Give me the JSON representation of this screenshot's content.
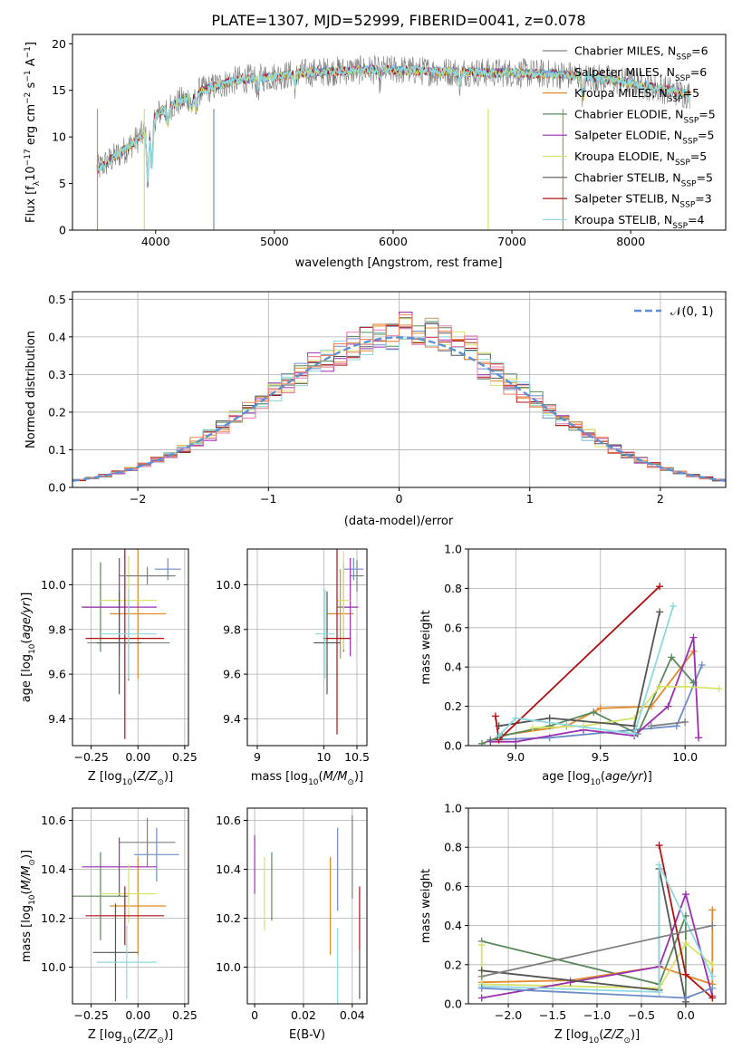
{
  "figure_title": "PLATE=1307, MJD=52999, FIBERID=0041, z=0.078",
  "legend_models": [
    {
      "label": "Chabrier MILES, N",
      "sub": "SSP",
      "suffix": "=6",
      "color": "#808080"
    },
    {
      "label": "Salpeter MILES, N",
      "sub": "SSP",
      "suffix": "=6",
      "color": "#6c8ec8"
    },
    {
      "label": "Kroupa MILES, N",
      "sub": "SSP",
      "suffix": "=5",
      "color": "#e08a2a"
    },
    {
      "label": "Chabrier ELODIE, N",
      "sub": "SSP",
      "suffix": "=5",
      "color": "#5a8a5a"
    },
    {
      "label": "Salpeter ELODIE, N",
      "sub": "SSP",
      "suffix": "=5",
      "color": "#9a2fb0"
    },
    {
      "label": "Kroupa ELODIE, N",
      "sub": "SSP",
      "suffix": "=5",
      "color": "#d6e26a"
    },
    {
      "label": "Chabrier STELIB, N",
      "sub": "SSP",
      "suffix": "=5",
      "color": "#555555"
    },
    {
      "label": "Salpeter STELIB, N",
      "sub": "SSP",
      "suffix": "=3",
      "color": "#b01010"
    },
    {
      "label": "Kroupa STELIB, N",
      "sub": "SSP",
      "suffix": "=4",
      "color": "#8ed8e0"
    }
  ],
  "chart_data": [
    {
      "type": "line",
      "name": "spectrum",
      "xlabel": "wavelength [Angstrom, rest frame]",
      "ylabel": "Flux [f",
      "ylabel_parts": [
        "Flux [f",
        "λ",
        "10",
        "−17",
        " erg cm",
        "−2",
        " s",
        "−1",
        " A",
        "−1",
        "]"
      ],
      "xlim": [
        3300,
        8800
      ],
      "ylim": [
        0,
        21
      ],
      "xticks": [
        4000,
        5000,
        6000,
        7000,
        8000
      ],
      "yticks": [
        0,
        5,
        10,
        15,
        20
      ],
      "grid": false,
      "legend_position": "top-right",
      "continuum": {
        "x": [
          3510,
          3560,
          3650,
          3750,
          3850,
          3920,
          3980,
          4050,
          4150,
          4250,
          4350,
          4450,
          4550,
          4650,
          4750,
          4850,
          5000,
          5200,
          5400,
          5600,
          5800,
          6000,
          6200,
          6400,
          6600,
          6800,
          7000,
          7200,
          7400,
          7600,
          7800,
          8000,
          8200,
          8400,
          8500
        ],
        "y": [
          6.5,
          7.0,
          7.8,
          8.7,
          9.8,
          10.6,
          12.0,
          12.8,
          13.5,
          14.0,
          14.8,
          15.2,
          15.6,
          16.0,
          16.2,
          16.3,
          16.5,
          16.8,
          17.0,
          17.1,
          17.2,
          17.2,
          17.1,
          17.0,
          17.0,
          16.9,
          16.9,
          16.8,
          16.7,
          16.5,
          16.2,
          15.8,
          15.3,
          14.8,
          14.5
        ]
      }
    },
    {
      "type": "bar",
      "name": "residual-histogram",
      "xlabel": "(data-model)/error",
      "ylabel": "Normed distribution",
      "xlim": [
        -2.5,
        2.5
      ],
      "ylim": [
        0,
        0.52
      ],
      "xticks": [
        -2,
        -1,
        0,
        1,
        2
      ],
      "yticks": [
        0.0,
        0.1,
        0.2,
        0.3,
        0.4,
        0.5
      ],
      "grid": true,
      "legend": "𝒩(0, 1)",
      "legend_position": "top-right",
      "bin_width": 0.1
    },
    {
      "type": "scatter",
      "name": "age-vs-Z",
      "xlabel": "Z [log",
      "ylabel": "age  [log",
      "xlim": [
        -0.35,
        0.27
      ],
      "ylim": [
        9.28,
        10.16
      ],
      "xticks": [
        -0.25,
        0.0,
        0.25
      ],
      "yticks": [
        9.4,
        9.6,
        9.8,
        10.0
      ],
      "points": [
        {
          "model": 0,
          "x": -0.05,
          "y": 9.74,
          "xerr": 0.22,
          "yerr": 0.17
        },
        {
          "model": 1,
          "x": 0.16,
          "y": 10.07,
          "xerr": 0.07,
          "yerr": 0.05
        },
        {
          "model": 2,
          "x": 0.0,
          "y": 9.87,
          "xerr": 0.15,
          "yerr": 0.29
        },
        {
          "model": 3,
          "x": -0.2,
          "y": 9.9,
          "xerr": 0.1,
          "yerr": 0.2
        },
        {
          "model": 4,
          "x": -0.1,
          "y": 9.9,
          "xerr": 0.2,
          "yerr": 0.22
        },
        {
          "model": 5,
          "x": -0.05,
          "y": 9.93,
          "xerr": 0.15,
          "yerr": 0.2
        },
        {
          "model": 6,
          "x": -0.1,
          "y": 9.74,
          "xerr": 0.12,
          "yerr": 0.23
        },
        {
          "model": 7,
          "x": -0.07,
          "y": 9.76,
          "xerr": 0.21,
          "yerr": 0.45
        },
        {
          "model": 8,
          "x": -0.05,
          "y": 9.78,
          "xerr": 0.15,
          "yerr": 0.2
        },
        {
          "model": 0,
          "x": 0.05,
          "y": 10.04,
          "xerr": 0.15,
          "yerr": 0.04
        }
      ]
    },
    {
      "type": "scatter",
      "name": "age-vs-mass",
      "xlabel": "mass [log",
      "ylabel": "",
      "xlim": [
        8.85,
        10.65
      ],
      "ylim": [
        9.28,
        10.16
      ],
      "xticks": [
        9,
        10,
        10.5
      ],
      "xtick_labels": [
        "9",
        "10",
        "10.5"
      ],
      "yticks": [
        9.4,
        9.6,
        9.8,
        10.0
      ],
      "points": [
        {
          "model": 0,
          "x": 10.5,
          "y": 10.04,
          "xerr": 0.1,
          "yerr": 0.07
        },
        {
          "model": 1,
          "x": 10.45,
          "y": 10.07,
          "xerr": 0.15,
          "yerr": 0.05
        },
        {
          "model": 2,
          "x": 10.25,
          "y": 9.87,
          "xerr": 0.2,
          "yerr": 0.2
        },
        {
          "model": 3,
          "x": 10.3,
          "y": 9.9,
          "xerr": 0.1,
          "yerr": 0.2
        },
        {
          "model": 4,
          "x": 10.4,
          "y": 9.9,
          "xerr": 0.12,
          "yerr": 0.22
        },
        {
          "model": 5,
          "x": 10.3,
          "y": 9.93,
          "xerr": 0.1,
          "yerr": 0.22
        },
        {
          "model": 6,
          "x": 10.05,
          "y": 9.74,
          "xerr": 0.2,
          "yerr": 0.23
        },
        {
          "model": 7,
          "x": 10.2,
          "y": 9.76,
          "xerr": 0.2,
          "yerr": 0.43
        },
        {
          "model": 8,
          "x": 10.02,
          "y": 9.78,
          "xerr": 0.15,
          "yerr": 0.2
        }
      ]
    },
    {
      "type": "line",
      "name": "mass-weight-vs-age",
      "xlabel": "age  [log",
      "ylabel": "mass weight",
      "xlim": [
        8.72,
        10.24
      ],
      "ylim": [
        0,
        1.0
      ],
      "xticks": [
        9.0,
        9.5,
        10.0
      ],
      "yticks": [
        0.0,
        0.2,
        0.4,
        0.6,
        0.8,
        1.0
      ],
      "grid": true,
      "series": [
        {
          "model": 1,
          "x": [
            8.85,
            9.2,
            9.95,
            10.1
          ],
          "y": [
            0.03,
            0.04,
            0.1,
            0.41
          ]
        },
        {
          "model": 2,
          "x": [
            8.9,
            9.3,
            9.5,
            9.8,
            10.05
          ],
          "y": [
            0.05,
            0.1,
            0.19,
            0.2,
            0.48
          ]
        },
        {
          "model": 3,
          "x": [
            8.8,
            8.92,
            9.2,
            9.46,
            9.72,
            9.92,
            10.05
          ],
          "y": [
            0.01,
            0.05,
            0.1,
            0.17,
            0.06,
            0.45,
            0.32
          ]
        },
        {
          "model": 4,
          "x": [
            8.85,
            9.0,
            9.4,
            9.7,
            9.9,
            10.05,
            10.08
          ],
          "y": [
            0.02,
            0.02,
            0.08,
            0.05,
            0.2,
            0.55,
            0.04
          ]
        },
        {
          "model": 5,
          "x": [
            9.1,
            9.4,
            9.7,
            9.85,
            10.0,
            10.2
          ],
          "y": [
            0.09,
            0.1,
            0.14,
            0.3,
            0.3,
            0.29
          ]
        },
        {
          "model": 6,
          "x": [
            8.9,
            9.2,
            9.7,
            9.85
          ],
          "y": [
            0.1,
            0.14,
            0.1,
            0.68
          ]
        },
        {
          "model": 7,
          "x": [
            8.88,
            8.9,
            9.85
          ],
          "y": [
            0.15,
            0.03,
            0.81
          ]
        },
        {
          "model": 8,
          "x": [
            8.9,
            9.0,
            9.7,
            9.93
          ],
          "y": [
            0.05,
            0.14,
            0.06,
            0.71
          ]
        },
        {
          "model": 0,
          "x": [
            9.8,
            10.0
          ],
          "y": [
            0.1,
            0.12
          ]
        }
      ]
    },
    {
      "type": "scatter",
      "name": "mass-vs-Z",
      "xlabel": "Z [log",
      "ylabel": "mass [log",
      "xlim": [
        -0.35,
        0.27
      ],
      "ylim": [
        9.85,
        10.65
      ],
      "xticks": [
        -0.25,
        0.0,
        0.25
      ],
      "yticks": [
        10.0,
        10.2,
        10.4,
        10.6
      ],
      "points": [
        {
          "model": 0,
          "x": 0.05,
          "y": 10.51,
          "xerr": 0.15,
          "yerr": 0.1
        },
        {
          "model": 1,
          "x": 0.1,
          "y": 10.46,
          "xerr": 0.12,
          "yerr": 0.11
        },
        {
          "model": 2,
          "x": 0.0,
          "y": 10.25,
          "xerr": 0.15,
          "yerr": 0.2
        },
        {
          "model": 3,
          "x": -0.2,
          "y": 10.29,
          "xerr": 0.15,
          "yerr": 0.18
        },
        {
          "model": 4,
          "x": -0.1,
          "y": 10.41,
          "xerr": 0.2,
          "yerr": 0.12
        },
        {
          "model": 5,
          "x": -0.05,
          "y": 10.3,
          "xerr": 0.15,
          "yerr": 0.12
        },
        {
          "model": 6,
          "x": -0.12,
          "y": 10.06,
          "xerr": 0.12,
          "yerr": 0.2
        },
        {
          "model": 7,
          "x": -0.07,
          "y": 10.21,
          "xerr": 0.21,
          "yerr": 0.12
        },
        {
          "model": 8,
          "x": -0.06,
          "y": 10.02,
          "xerr": 0.16,
          "yerr": 0.15
        }
      ]
    },
    {
      "type": "scatter",
      "name": "mass-vs-ebv",
      "xlabel": "E(B-V)",
      "ylabel": "",
      "xlim": [
        -0.003,
        0.046
      ],
      "ylim": [
        9.85,
        10.65
      ],
      "xticks": [
        0.0,
        0.02,
        0.04
      ],
      "xtick_labels": [
        "0.00",
        "0.02",
        "0.04"
      ],
      "yticks": [
        10.0,
        10.2,
        10.4,
        10.6
      ],
      "points": [
        {
          "model": 4,
          "x": 0.0,
          "y": 10.42,
          "yerr": 0.12
        },
        {
          "model": 5,
          "x": 0.004,
          "y": 10.3,
          "yerr": 0.15
        },
        {
          "model": 3,
          "x": 0.007,
          "y": 10.33,
          "yerr": 0.14
        },
        {
          "model": 2,
          "x": 0.031,
          "y": 10.25,
          "yerr": 0.2
        },
        {
          "model": 1,
          "x": 0.034,
          "y": 10.4,
          "yerr": 0.17
        },
        {
          "model": 8,
          "x": 0.034,
          "y": 10.0,
          "yerr": 0.16
        },
        {
          "model": 0,
          "x": 0.04,
          "y": 10.45,
          "yerr": 0.17
        },
        {
          "model": 7,
          "x": 0.043,
          "y": 10.2,
          "yerr": 0.13
        },
        {
          "model": 6,
          "x": 0.043,
          "y": 9.97,
          "yerr": 0.1
        }
      ]
    },
    {
      "type": "line",
      "name": "mass-weight-vs-Z",
      "xlabel": "Z [log",
      "ylabel": "mass weight",
      "xlim": [
        -2.45,
        0.45
      ],
      "ylim": [
        0,
        1.0
      ],
      "xticks": [
        -2.0,
        -1.5,
        -1.0,
        -0.5,
        0.0
      ],
      "yticks": [
        0.0,
        0.2,
        0.4,
        0.6,
        0.8,
        1.0
      ],
      "grid": true,
      "series": [
        {
          "model": 3,
          "x": [
            -2.3,
            -0.3,
            0.0,
            0.0
          ],
          "y": [
            0.32,
            0.1,
            0.45,
            0.01
          ]
        },
        {
          "model": 2,
          "x": [
            -2.3,
            -1.3,
            -0.3,
            0.3,
            0.3
          ],
          "y": [
            0.11,
            0.12,
            0.19,
            0.1,
            0.48
          ]
        },
        {
          "model": 5,
          "x": [
            -2.3,
            -2.3,
            -0.3,
            0.0,
            0.3
          ],
          "y": [
            0.3,
            0.1,
            0.08,
            0.31,
            0.2
          ]
        },
        {
          "model": 4,
          "x": [
            -2.3,
            -1.3,
            -0.3,
            0.0,
            0.3
          ],
          "y": [
            0.03,
            0.11,
            0.19,
            0.56,
            0.04
          ]
        },
        {
          "model": 6,
          "x": [
            -2.3,
            -0.3,
            -0.3,
            0.0
          ],
          "y": [
            0.17,
            0.07,
            0.69,
            0.01
          ]
        },
        {
          "model": 7,
          "x": [
            -0.3,
            0.0,
            0.3
          ],
          "y": [
            0.81,
            0.15,
            0.03
          ]
        },
        {
          "model": 8,
          "x": [
            -2.3,
            -0.3,
            -0.3,
            0.3
          ],
          "y": [
            0.09,
            0.06,
            0.71,
            0.14
          ]
        },
        {
          "model": 1,
          "x": [
            -2.3,
            0.0,
            0.3
          ],
          "y": [
            0.08,
            0.03,
            0.08
          ]
        },
        {
          "model": 0,
          "x": [
            -2.3,
            0.3
          ],
          "y": [
            0.14,
            0.4
          ]
        }
      ]
    }
  ]
}
